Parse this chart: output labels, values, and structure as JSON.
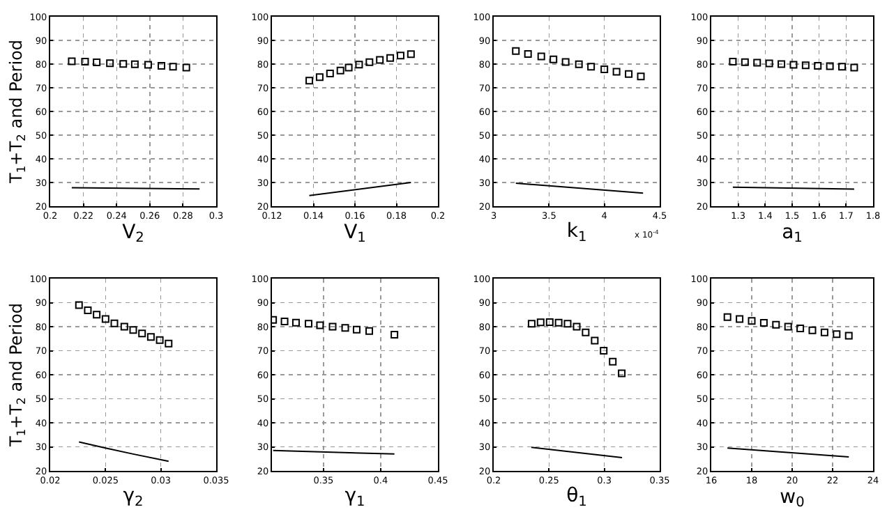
{
  "chart_data": [
    {
      "type": "scatter",
      "xlabel": "V$_{2}$",
      "ylabel": "T$_{1}$+T$_{2}$ and Period",
      "xlim": [
        0.2,
        0.3
      ],
      "xticks": [
        0.2,
        0.22,
        0.24,
        0.26,
        0.28,
        0.3
      ],
      "ylim": [
        20,
        100
      ],
      "yticks": [
        20,
        30,
        40,
        50,
        60,
        70,
        80,
        90,
        100
      ],
      "grid": true,
      "series": [
        {
          "type": "scatter",
          "marker": "square",
          "color": "#000000",
          "x": [
            0.213,
            0.221,
            0.228,
            0.236,
            0.244,
            0.251,
            0.259,
            0.267,
            0.274,
            0.282
          ],
          "values": [
            81.2,
            81,
            80.7,
            80.4,
            80.1,
            79.9,
            79.7,
            79.3,
            78.9,
            78.5
          ]
        },
        {
          "type": "line",
          "color": "#000000",
          "x": [
            0.213,
            0.29
          ],
          "values": [
            27.8,
            27.3
          ]
        }
      ]
    },
    {
      "type": "scatter",
      "xlabel": "V$_{1}$",
      "xlim": [
        0.12,
        0.2
      ],
      "xticks": [
        0.12,
        0.14,
        0.16,
        0.18,
        0.2
      ],
      "ylim": [
        20,
        100
      ],
      "yticks": [
        20,
        30,
        40,
        50,
        60,
        70,
        80,
        90,
        100
      ],
      "grid": true,
      "series": [
        {
          "type": "scatter",
          "marker": "square",
          "color": "#000000",
          "x": [
            0.138,
            0.143,
            0.148,
            0.153,
            0.157,
            0.162,
            0.167,
            0.172,
            0.177,
            0.182,
            0.187
          ],
          "values": [
            73,
            74.5,
            76,
            77.3,
            78.5,
            79.8,
            80.8,
            81.8,
            82.6,
            83.6,
            84.2
          ]
        },
        {
          "type": "line",
          "color": "#000000",
          "x": [
            0.138,
            0.187
          ],
          "values": [
            24.5,
            30
          ]
        }
      ]
    },
    {
      "type": "scatter",
      "xlabel": "k$_{1}$",
      "annotations": [
        "x 10$^{-4}$"
      ],
      "xlim": [
        3,
        4.5
      ],
      "xticks": [
        3,
        3.5,
        4,
        4.5
      ],
      "ylim": [
        20,
        100
      ],
      "yticks": [
        20,
        30,
        40,
        50,
        60,
        70,
        80,
        90,
        100
      ],
      "grid": true,
      "series": [
        {
          "type": "scatter",
          "marker": "square",
          "color": "#000000",
          "x": [
            3.2,
            3.31,
            3.43,
            3.54,
            3.65,
            3.77,
            3.88,
            4,
            4.11,
            4.22,
            4.33
          ],
          "values": [
            85.5,
            84.3,
            83.2,
            82,
            80.9,
            79.9,
            78.9,
            77.8,
            76.8,
            75.8,
            74.8
          ]
        },
        {
          "type": "line",
          "color": "#000000",
          "x": [
            3.2,
            4.35
          ],
          "values": [
            29.7,
            25.5
          ]
        }
      ]
    },
    {
      "type": "scatter",
      "xlabel": "a$_{1}$",
      "xlim": [
        1.2,
        1.8
      ],
      "xticks": [
        1.3,
        1.4,
        1.5,
        1.6,
        1.7,
        1.8
      ],
      "ylim": [
        20,
        100
      ],
      "yticks": [
        20,
        30,
        40,
        50,
        60,
        70,
        80,
        90,
        100
      ],
      "grid": true,
      "series": [
        {
          "type": "scatter",
          "marker": "square",
          "color": "#000000",
          "x": [
            1.28,
            1.325,
            1.37,
            1.415,
            1.46,
            1.505,
            1.55,
            1.595,
            1.64,
            1.685,
            1.73
          ],
          "values": [
            81,
            80.8,
            80.6,
            80.3,
            80,
            79.7,
            79.5,
            79.3,
            79.1,
            78.9,
            78.5
          ]
        },
        {
          "type": "line",
          "color": "#000000",
          "x": [
            1.28,
            1.73
          ],
          "values": [
            28,
            27.2
          ]
        }
      ]
    },
    {
      "type": "scatter",
      "xlabel": "γ$_{2}$",
      "ylabel": "T$_{1}$+T$_{2}$ and Period",
      "xlim": [
        0.02,
        0.035
      ],
      "xticks": [
        0.02,
        0.025,
        0.03,
        0.035
      ],
      "ylim": [
        20,
        100
      ],
      "yticks": [
        20,
        30,
        40,
        50,
        60,
        70,
        80,
        90,
        100
      ],
      "grid": true,
      "series": [
        {
          "type": "scatter",
          "marker": "square",
          "color": "#000000",
          "x": [
            0.0226,
            0.0234,
            0.0242,
            0.025,
            0.0258,
            0.0267,
            0.0275,
            0.0283,
            0.0291,
            0.0299,
            0.0307
          ],
          "values": [
            89,
            86.8,
            85,
            83.2,
            81.4,
            80,
            78.6,
            77.2,
            75.7,
            74.4,
            73
          ]
        },
        {
          "type": "line",
          "color": "#000000",
          "x": [
            0.0226,
            0.025,
            0.0275,
            0.0307
          ],
          "values": [
            32,
            29.5,
            27,
            24
          ]
        }
      ]
    },
    {
      "type": "scatter",
      "xlabel": "γ$_{1}$",
      "xlim": [
        0.305,
        0.45
      ],
      "xticks": [
        0.35,
        0.4,
        0.45
      ],
      "ylim": [
        20,
        100
      ],
      "yticks": [
        20,
        30,
        40,
        50,
        60,
        70,
        80,
        90,
        100
      ],
      "grid": true,
      "series": [
        {
          "type": "scatter",
          "marker": "square",
          "color": "#000000",
          "x": [
            0.306,
            0.316,
            0.326,
            0.337,
            0.347,
            0.358,
            0.369,
            0.379,
            0.39,
            0.412
          ],
          "values": [
            82.8,
            82.2,
            81.7,
            81.2,
            80.6,
            80,
            79.5,
            78.8,
            78.2,
            76.7
          ]
        },
        {
          "type": "line",
          "color": "#000000",
          "x": [
            0.306,
            0.412
          ],
          "values": [
            28.5,
            27
          ]
        }
      ]
    },
    {
      "type": "scatter",
      "xlabel": "θ$_{1}$",
      "xlim": [
        0.2,
        0.35
      ],
      "xticks": [
        0.2,
        0.25,
        0.3,
        0.35
      ],
      "ylim": [
        20,
        100
      ],
      "yticks": [
        20,
        30,
        40,
        50,
        60,
        70,
        80,
        90,
        100
      ],
      "grid": true,
      "series": [
        {
          "type": "scatter",
          "marker": "square",
          "color": "#000000",
          "x": [
            0.2343,
            0.2424,
            0.2506,
            0.2587,
            0.2668,
            0.275,
            0.2831,
            0.2913,
            0.2994,
            0.3076,
            0.3157
          ],
          "values": [
            81.2,
            81.8,
            81.9,
            81.7,
            81.2,
            80,
            77.6,
            74.2,
            70,
            65.4,
            60.6
          ]
        },
        {
          "type": "line",
          "color": "#000000",
          "x": [
            0.234,
            0.316
          ],
          "values": [
            29.8,
            25.5
          ]
        }
      ]
    },
    {
      "type": "scatter",
      "xlabel": "w$_{0}$",
      "xlim": [
        16,
        24
      ],
      "xticks": [
        16,
        18,
        20,
        22,
        24
      ],
      "ylim": [
        20,
        100
      ],
      "yticks": [
        20,
        30,
        40,
        50,
        60,
        70,
        80,
        90,
        100
      ],
      "grid": true,
      "series": [
        {
          "type": "scatter",
          "marker": "square",
          "color": "#000000",
          "x": [
            16.8,
            17.4,
            18,
            18.6,
            19.2,
            19.8,
            20.4,
            21,
            21.6,
            22.2,
            22.8
          ],
          "values": [
            84,
            83.2,
            82.4,
            81.6,
            80.8,
            80,
            79.3,
            78.5,
            77.6,
            76.9,
            76.2
          ]
        },
        {
          "type": "line",
          "color": "#000000",
          "x": [
            16.8,
            22.8
          ],
          "values": [
            29.5,
            25.8
          ]
        }
      ]
    }
  ]
}
